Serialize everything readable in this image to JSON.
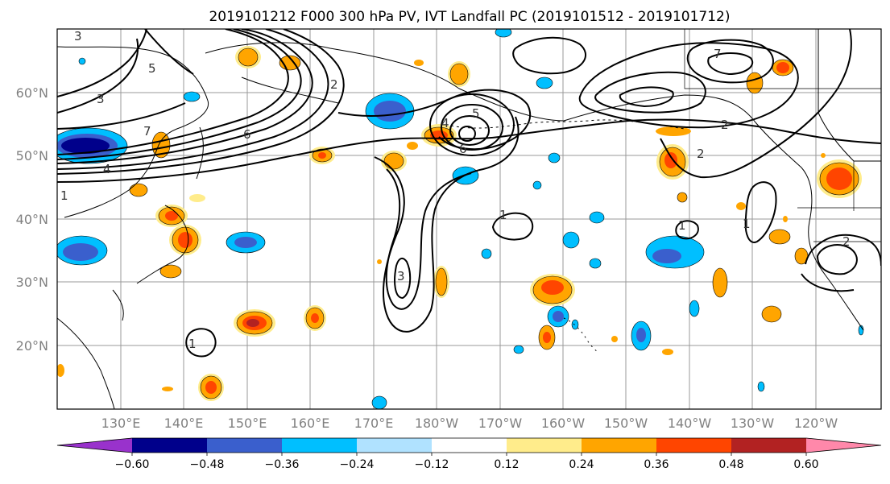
{
  "map": {
    "title": "2019101212 F000 300 hPa PV, IVT Landfall PC (2019101512 - 2019101712)",
    "lat_labels": [
      "60°N",
      "50°N",
      "40°N",
      "30°N",
      "20°N"
    ],
    "lon_labels": [
      "130°E",
      "140°E",
      "150°E",
      "160°E",
      "170°E",
      "180°W",
      "170°W",
      "160°W",
      "150°W",
      "140°W",
      "130°W",
      "120°W"
    ],
    "contour_labels": [
      "7",
      "6",
      "5",
      "4",
      "3",
      "2",
      "1",
      "7",
      "6",
      "5",
      "3",
      "2",
      "1",
      "1",
      "2",
      "1",
      "1",
      "2",
      "3",
      "4"
    ]
  },
  "colorbar": {
    "colors": [
      "#9932cc",
      "#00008b",
      "#3a5fcd",
      "#00bfff",
      "#b0e2ff",
      "#ffffff",
      "#ffec8b",
      "#ffa500",
      "#ff4500",
      "#b22222",
      "#ff88aa"
    ],
    "tick_labels": [
      "−0.60",
      "−0.48",
      "−0.36",
      "−0.24",
      "−0.12",
      "0.12",
      "0.24",
      "0.36",
      "0.48",
      "0.60"
    ]
  },
  "chart_data": {
    "type": "heatmap",
    "title": "2019101212 F000 300 hPa PV, IVT Landfall PC (2019101512 - 2019101712)",
    "x_ticks": [
      "130°E",
      "140°E",
      "150°E",
      "160°E",
      "170°E",
      "180°W",
      "170°W",
      "160°W",
      "150°W",
      "140°W",
      "130°W",
      "120°W"
    ],
    "y_ticks": [
      "20°N",
      "30°N",
      "40°N",
      "50°N",
      "60°N"
    ],
    "colorbar_levels": [
      -0.6,
      -0.48,
      -0.36,
      -0.24,
      -0.12,
      0.12,
      0.24,
      0.36,
      0.48,
      0.6
    ],
    "colorbar_colors": [
      "#9932cc",
      "#00008b",
      "#3a5fcd",
      "#00bfff",
      "#b0e2ff",
      "#ffffff",
      "#ffec8b",
      "#ffa500",
      "#ff4500",
      "#b22222",
      "#ff88aa"
    ],
    "colorbar_extend": "both",
    "grid": true,
    "projection": "lat-lon",
    "contour_field": "300 hPa PV",
    "contour_label_values": [
      1,
      2,
      3,
      4,
      5,
      6,
      7
    ]
  }
}
